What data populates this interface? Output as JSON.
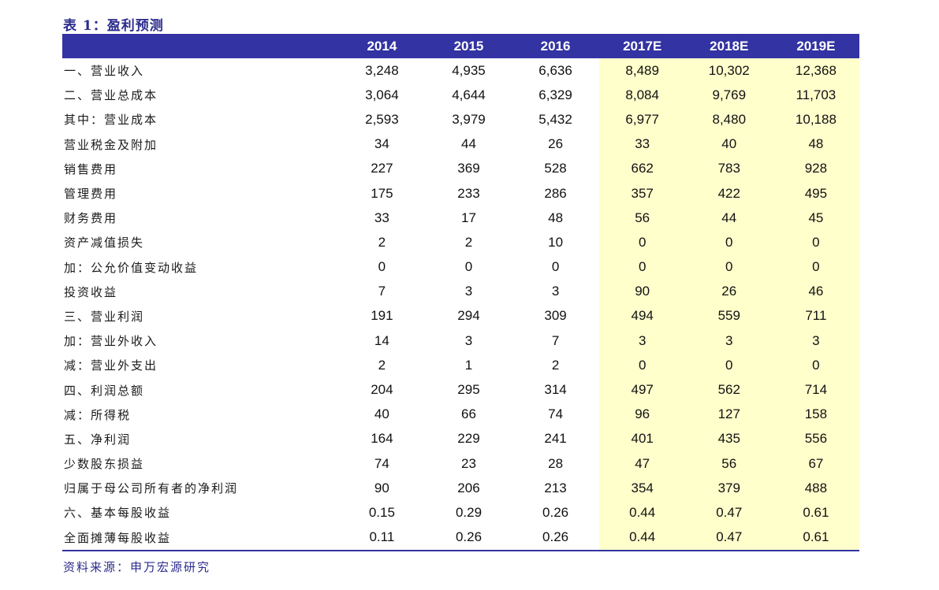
{
  "title": "表 1：盈利预测",
  "table": {
    "columns": [
      "2014",
      "2015",
      "2016",
      "2017E",
      "2018E",
      "2019E"
    ],
    "forecast_columns": [
      "2017E",
      "2018E",
      "2019E"
    ],
    "rows": [
      {
        "label": "一、营业收入",
        "values": [
          "3,248",
          "4,935",
          "6,636",
          "8,489",
          "10,302",
          "12,368"
        ]
      },
      {
        "label": "二、营业总成本",
        "values": [
          "3,064",
          "4,644",
          "6,329",
          "8,084",
          "9,769",
          "11,703"
        ]
      },
      {
        "label": "其中：营业成本",
        "values": [
          "2,593",
          "3,979",
          "5,432",
          "6,977",
          "8,480",
          "10,188"
        ]
      },
      {
        "label": "营业税金及附加",
        "values": [
          "34",
          "44",
          "26",
          "33",
          "40",
          "48"
        ]
      },
      {
        "label": "销售费用",
        "values": [
          "227",
          "369",
          "528",
          "662",
          "783",
          "928"
        ]
      },
      {
        "label": "管理费用",
        "values": [
          "175",
          "233",
          "286",
          "357",
          "422",
          "495"
        ]
      },
      {
        "label": "财务费用",
        "values": [
          "33",
          "17",
          "48",
          "56",
          "44",
          "45"
        ]
      },
      {
        "label": "资产减值损失",
        "values": [
          "2",
          "2",
          "10",
          "0",
          "0",
          "0"
        ]
      },
      {
        "label": "加：公允价值变动收益",
        "values": [
          "0",
          "0",
          "0",
          "0",
          "0",
          "0"
        ]
      },
      {
        "label": "投资收益",
        "values": [
          "7",
          "3",
          "3",
          "90",
          "26",
          "46"
        ]
      },
      {
        "label": "三、营业利润",
        "values": [
          "191",
          "294",
          "309",
          "494",
          "559",
          "711"
        ]
      },
      {
        "label": "加：营业外收入",
        "values": [
          "14",
          "3",
          "7",
          "3",
          "3",
          "3"
        ]
      },
      {
        "label": "减：营业外支出",
        "values": [
          "2",
          "1",
          "2",
          "0",
          "0",
          "0"
        ]
      },
      {
        "label": "四、利润总额",
        "values": [
          "204",
          "295",
          "314",
          "497",
          "562",
          "714"
        ]
      },
      {
        "label": "减：所得税",
        "values": [
          "40",
          "66",
          "74",
          "96",
          "127",
          "158"
        ]
      },
      {
        "label": "五、净利润",
        "values": [
          "164",
          "229",
          "241",
          "401",
          "435",
          "556"
        ]
      },
      {
        "label": "少数股东损益",
        "values": [
          "74",
          "23",
          "28",
          "47",
          "56",
          "67"
        ]
      },
      {
        "label": "归属于母公司所有者的净利润",
        "values": [
          "90",
          "206",
          "213",
          "354",
          "379",
          "488"
        ]
      },
      {
        "label": "六、基本每股收益",
        "values": [
          "0.15",
          "0.29",
          "0.26",
          "0.44",
          "0.47",
          "0.61"
        ]
      },
      {
        "label": "全面摊薄每股收益",
        "values": [
          "0.11",
          "0.26",
          "0.26",
          "0.44",
          "0.47",
          "0.61"
        ]
      }
    ]
  },
  "source": "资料来源：申万宏源研究",
  "colors": {
    "header_bg": "#3333a3",
    "header_text": "#ffffff",
    "forecast_bg": "#ffffcc",
    "title_text": "#2b2b8c"
  }
}
